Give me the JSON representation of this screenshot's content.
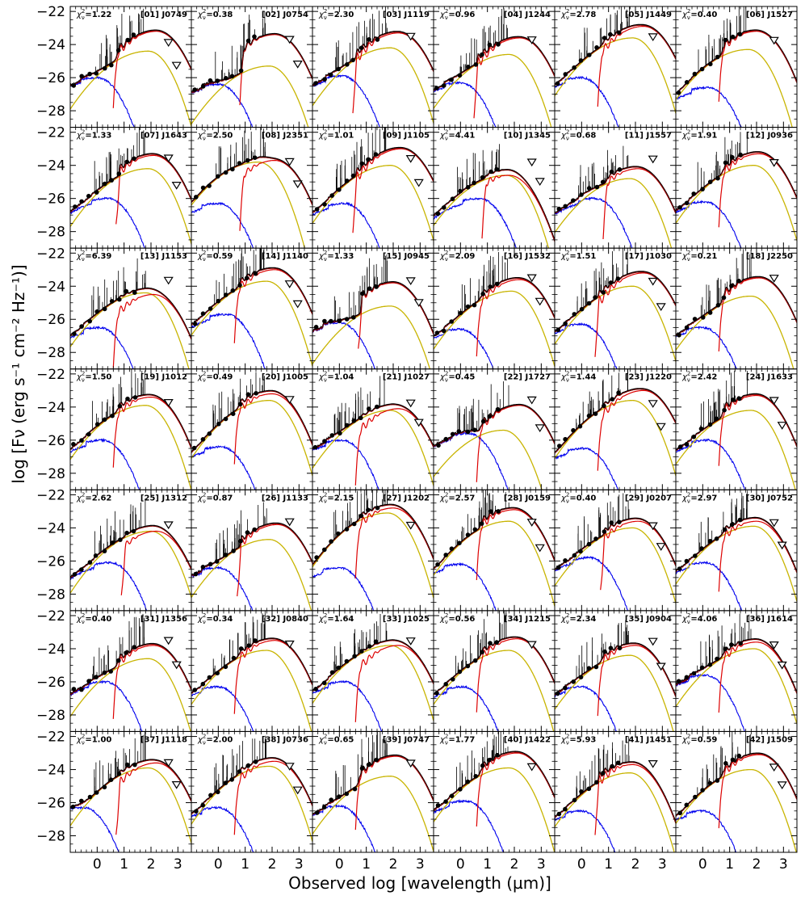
{
  "chart_data": {
    "type": "line",
    "layout_grid": "6x7",
    "xlabel": "Observed log [wavelength (µm)]",
    "ylabel": "log [Fν (erg s⁻¹ cm⁻² Hz⁻¹)]",
    "xlim": [
      -1.0,
      3.5
    ],
    "ylim": [
      -29.0,
      -21.7
    ],
    "x_ticks": [
      "0",
      "1",
      "2",
      "3"
    ],
    "y_ticks": [
      "−22",
      "−24",
      "−26",
      "−28"
    ],
    "colors": {
      "total_model": "#000000",
      "red_component": "#dd0000",
      "olive_component": "#c8b400",
      "blue_component": "#0000ee",
      "dark_red_component": "#8b0000",
      "observed_points": "#000000",
      "upper_limits": "#000000"
    },
    "panels": [
      {
        "index": "[01]",
        "id": "J0749",
        "chi": "=1.22",
        "peak": [
          2.2,
          -23.2
        ],
        "olive_peak": [
          1.9,
          -24.4
        ],
        "blue_peak": [
          0.0,
          -26.0
        ],
        "red_start": 0.6,
        "red_shape": 1.0
      },
      {
        "index": "[02]",
        "id": "J0754",
        "chi": "=0.38",
        "peak": [
          2.1,
          -23.4
        ],
        "olive_peak": [
          1.9,
          -25.3
        ],
        "blue_peak": [
          0.0,
          -26.4
        ],
        "red_start": 0.8,
        "red_shape": 1.0
      },
      {
        "index": "[03]",
        "id": "J1119",
        "chi": "=2.30",
        "peak": [
          2.2,
          -23.3
        ],
        "olive_peak": [
          1.9,
          -24.2
        ],
        "blue_peak": [
          0.1,
          -25.9
        ],
        "red_start": 0.5,
        "red_shape": 1.0
      },
      {
        "index": "[04]",
        "id": "J1244",
        "chi": "=0.96",
        "peak": [
          2.2,
          -23.6
        ],
        "olive_peak": [
          1.8,
          -24.6
        ],
        "blue_peak": [
          0.0,
          -26.3
        ],
        "red_start": 0.5,
        "red_shape": 1.0
      },
      {
        "index": "[05]",
        "id": "J1449",
        "chi": "=2.78",
        "peak": [
          2.3,
          -22.9
        ],
        "olive_peak": [
          1.9,
          -23.6
        ],
        "blue_peak": [
          0.0,
          -26.0
        ],
        "red_start": 0.6,
        "red_shape": 1.0
      },
      {
        "index": "[06]",
        "id": "J1527",
        "chi": "=0.40",
        "peak": [
          2.0,
          -23.2
        ],
        "olive_peak": [
          1.7,
          -24.3
        ],
        "blue_peak": [
          0.2,
          -26.6
        ],
        "red_start": 0.6,
        "red_shape": 1.0
      },
      {
        "index": "[07]",
        "id": "J1643",
        "chi": "=1.33",
        "peak": [
          2.1,
          -23.4
        ],
        "olive_peak": [
          1.9,
          -24.2
        ],
        "blue_peak": [
          0.4,
          -26.0
        ],
        "red_start": 0.7,
        "red_shape": 1.0
      },
      {
        "index": "[08]",
        "id": "J2351",
        "chi": "=2.50",
        "peak": [
          2.1,
          -23.7
        ],
        "olive_peak": [
          1.5,
          -23.8
        ],
        "blue_peak": [
          0.0,
          -26.3
        ],
        "red_start": 0.8,
        "red_shape": 1.0
      },
      {
        "index": "[09]",
        "id": "J1105",
        "chi": "=1.01",
        "peak": [
          2.3,
          -23.0
        ],
        "olive_peak": [
          1.9,
          -24.0
        ],
        "blue_peak": [
          0.2,
          -26.3
        ],
        "red_start": 0.5,
        "red_shape": 1.0
      },
      {
        "index": "[10]",
        "id": "J1345",
        "chi": "=4.41",
        "peak": [
          1.8,
          -24.6
        ],
        "olive_peak": [
          1.7,
          -24.6
        ],
        "blue_peak": [
          0.7,
          -26.0
        ],
        "red_start": 0.8,
        "red_shape": 1.0
      },
      {
        "index": "[11]",
        "id": "J1557",
        "chi": "=0.68",
        "peak": [
          2.1,
          -24.2
        ],
        "olive_peak": [
          1.8,
          -24.8
        ],
        "blue_peak": [
          0.5,
          -26.0
        ],
        "red_start": 0.8,
        "red_shape": 1.0
      },
      {
        "index": "[12]",
        "id": "J0936",
        "chi": "=1.91",
        "peak": [
          2.1,
          -23.3
        ],
        "olive_peak": [
          1.9,
          -24.0
        ],
        "blue_peak": [
          0.1,
          -26.2
        ],
        "red_start": 0.6,
        "red_shape": 1.0
      },
      {
        "index": "[13]",
        "id": "J1153",
        "chi": "=6.39",
        "peak": [
          2.1,
          -24.5
        ],
        "olive_peak": [
          1.8,
          -24.4
        ],
        "blue_peak": [
          0.1,
          -26.5
        ],
        "red_start": 0.6,
        "red_shape": 1.0
      },
      {
        "index": "[14]",
        "id": "J1140",
        "chi": "=0.59",
        "peak": [
          2.1,
          -23.0
        ],
        "olive_peak": [
          1.8,
          -23.7
        ],
        "blue_peak": [
          0.3,
          -25.7
        ],
        "red_start": 0.6,
        "red_shape": 1.0
      },
      {
        "index": "[15]",
        "id": "J0945",
        "chi": "=1.33",
        "peak": [
          2.0,
          -23.8
        ],
        "olive_peak": [
          1.9,
          -25.2
        ],
        "blue_peak": [
          0.0,
          -26.2
        ],
        "red_start": 0.7,
        "red_shape": 1.0
      },
      {
        "index": "[16]",
        "id": "J1532",
        "chi": "=2.09",
        "peak": [
          2.2,
          -23.6
        ],
        "olive_peak": [
          1.9,
          -24.3
        ],
        "blue_peak": [
          0.0,
          -26.6
        ],
        "red_start": 0.6,
        "red_shape": 1.0
      },
      {
        "index": "[17]",
        "id": "J1030",
        "chi": "=1.51",
        "peak": [
          2.3,
          -23.2
        ],
        "olive_peak": [
          1.9,
          -24.0
        ],
        "blue_peak": [
          0.0,
          -26.3
        ],
        "red_start": 0.5,
        "red_shape": 1.0
      },
      {
        "index": "[18]",
        "id": "J2250",
        "chi": "=0.21",
        "peak": [
          2.1,
          -23.5
        ],
        "olive_peak": [
          1.8,
          -24.6
        ],
        "blue_peak": [
          0.0,
          -26.5
        ],
        "red_start": 0.6,
        "red_shape": 1.0
      },
      {
        "index": "[19]",
        "id": "J1012",
        "chi": "=1.50",
        "peak": [
          2.0,
          -23.4
        ],
        "olive_peak": [
          1.8,
          -23.9
        ],
        "blue_peak": [
          0.2,
          -26.0
        ],
        "red_start": 0.6,
        "red_shape": 1.0
      },
      {
        "index": "[20]",
        "id": "J1005",
        "chi": "=0.49",
        "peak": [
          2.0,
          -23.2
        ],
        "olive_peak": [
          1.9,
          -23.6
        ],
        "blue_peak": [
          0.1,
          -26.4
        ],
        "red_start": 0.6,
        "red_shape": 1.0
      },
      {
        "index": "[21]",
        "id": "J1027",
        "chi": "=1.04",
        "peak": [
          2.2,
          -24.1
        ],
        "olive_peak": [
          1.9,
          -24.2
        ],
        "blue_peak": [
          0.1,
          -26.0
        ],
        "red_start": 0.6,
        "red_shape": 1.0
      },
      {
        "index": "[22]",
        "id": "J1727",
        "chi": "=0.45",
        "peak": [
          2.2,
          -23.9
        ],
        "olive_peak": [
          1.6,
          -25.4
        ],
        "blue_peak": [
          0.3,
          -25.6
        ],
        "red_start": 0.6,
        "red_shape": 1.0
      },
      {
        "index": "[23]",
        "id": "J1220",
        "chi": "=1.44",
        "peak": [
          2.3,
          -23.0
        ],
        "olive_peak": [
          1.9,
          -23.6
        ],
        "blue_peak": [
          0.1,
          -26.5
        ],
        "red_start": 0.6,
        "red_shape": 1.0
      },
      {
        "index": "[24]",
        "id": "J1633",
        "chi": "=2.42",
        "peak": [
          2.0,
          -23.3
        ],
        "olive_peak": [
          1.8,
          -24.2
        ],
        "blue_peak": [
          0.2,
          -26.0
        ],
        "red_start": 0.6,
        "red_shape": 1.0
      },
      {
        "index": "[25]",
        "id": "J1312",
        "chi": "=2.62",
        "peak": [
          2.2,
          -24.2
        ],
        "olive_peak": [
          2.0,
          -24.2
        ],
        "blue_peak": [
          0.5,
          -26.1
        ],
        "red_start": 0.9,
        "red_shape": 1.0
      },
      {
        "index": "[26]",
        "id": "J1133",
        "chi": "=0.87",
        "peak": [
          2.2,
          -23.8
        ],
        "olive_peak": [
          1.9,
          -24.7
        ],
        "blue_peak": [
          0.0,
          -26.4
        ],
        "red_start": 0.7,
        "red_shape": 1.0
      },
      {
        "index": "[27]",
        "id": "J1202",
        "chi": "=2.15",
        "peak": [
          2.0,
          -22.8
        ],
        "olive_peak": [
          1.8,
          -23.1
        ],
        "blue_peak": [
          0.0,
          -26.4
        ],
        "red_start": 0.6,
        "red_shape": 1.0
      },
      {
        "index": "[28]",
        "id": "J0159",
        "chi": "=2.57",
        "peak": [
          2.0,
          -22.9
        ],
        "olive_peak": [
          1.8,
          -23.6
        ],
        "blue_peak": [
          0.0,
          -26.2
        ],
        "red_start": 0.6,
        "red_shape": 1.0
      },
      {
        "index": "[29]",
        "id": "J0207",
        "chi": "=0.40",
        "peak": [
          2.1,
          -23.6
        ],
        "olive_peak": [
          1.9,
          -24.0
        ],
        "blue_peak": [
          0.3,
          -25.8
        ],
        "red_start": 0.7,
        "red_shape": 1.0
      },
      {
        "index": "[30]",
        "id": "J0752",
        "chi": "=2.97",
        "peak": [
          2.0,
          -23.6
        ],
        "olive_peak": [
          1.9,
          -23.9
        ],
        "blue_peak": [
          0.1,
          -26.1
        ],
        "red_start": 0.6,
        "red_shape": 1.0
      },
      {
        "index": "[31]",
        "id": "J1356",
        "chi": "=0.40",
        "peak": [
          2.1,
          -23.8
        ],
        "olive_peak": [
          1.9,
          -24.6
        ],
        "blue_peak": [
          0.3,
          -26.0
        ],
        "red_start": 0.6,
        "red_shape": 1.0
      },
      {
        "index": "[32]",
        "id": "J0840",
        "chi": "=0.34",
        "peak": [
          2.1,
          -23.5
        ],
        "olive_peak": [
          1.8,
          -24.1
        ],
        "blue_peak": [
          0.0,
          -26.3
        ],
        "red_start": 0.6,
        "red_shape": 1.0
      },
      {
        "index": "[33]",
        "id": "J1025",
        "chi": "=1.64",
        "peak": [
          2.2,
          -23.8
        ],
        "olive_peak": [
          1.9,
          -23.8
        ],
        "blue_peak": [
          0.2,
          -26.0
        ],
        "red_start": 0.6,
        "red_shape": 1.0
      },
      {
        "index": "[34]",
        "id": "J1215",
        "chi": "=0.56",
        "peak": [
          2.1,
          -23.4
        ],
        "olive_peak": [
          1.8,
          -24.1
        ],
        "blue_peak": [
          0.1,
          -26.3
        ],
        "red_start": 0.6,
        "red_shape": 1.0
      },
      {
        "index": "[35]",
        "id": "J0904",
        "chi": "=2.34",
        "peak": [
          2.0,
          -23.8
        ],
        "olive_peak": [
          1.8,
          -24.4
        ],
        "blue_peak": [
          0.0,
          -26.3
        ],
        "red_start": 0.6,
        "red_shape": 1.0
      },
      {
        "index": "[36]",
        "id": "J1614",
        "chi": "=4.06",
        "peak": [
          2.0,
          -23.6
        ],
        "olive_peak": [
          1.9,
          -24.0
        ],
        "blue_peak": [
          0.1,
          -25.6
        ],
        "red_start": 0.6,
        "red_shape": 1.0
      },
      {
        "index": "[37]",
        "id": "J1118",
        "chi": "=1.00",
        "peak": [
          2.2,
          -23.6
        ],
        "olive_peak": [
          1.9,
          -23.9
        ],
        "blue_peak": [
          -0.5,
          -26.3
        ],
        "red_start": 0.7,
        "red_shape": 1.0
      },
      {
        "index": "[38]",
        "id": "J0736",
        "chi": "=2.00",
        "peak": [
          2.1,
          -23.5
        ],
        "olive_peak": [
          1.9,
          -23.8
        ],
        "blue_peak": [
          0.0,
          -26.3
        ],
        "red_start": 0.6,
        "red_shape": 1.0
      },
      {
        "index": "[39]",
        "id": "J0747",
        "chi": "=0.65",
        "peak": [
          2.1,
          -23.2
        ],
        "olive_peak": [
          1.9,
          -24.4
        ],
        "blue_peak": [
          0.0,
          -26.2
        ],
        "red_start": 0.6,
        "red_shape": 1.0
      },
      {
        "index": "[40]",
        "id": "J1422",
        "chi": "=1.77",
        "peak": [
          2.1,
          -23.0
        ],
        "olive_peak": [
          1.8,
          -23.9
        ],
        "blue_peak": [
          0.2,
          -25.9
        ],
        "red_start": 0.6,
        "red_shape": 1.0
      },
      {
        "index": "[41]",
        "id": "J1451",
        "chi": "=5.93",
        "peak": [
          1.9,
          -23.7
        ],
        "olive_peak": [
          1.8,
          -24.2
        ],
        "blue_peak": [
          0.0,
          -26.5
        ],
        "red_start": 0.5,
        "red_shape": 1.0
      },
      {
        "index": "[42]",
        "id": "J1509",
        "chi": "=0.59",
        "peak": [
          2.1,
          -23.1
        ],
        "olive_peak": [
          1.8,
          -24.0
        ],
        "blue_peak": [
          0.0,
          -26.5
        ],
        "red_start": 0.6,
        "red_shape": 1.0
      }
    ]
  }
}
